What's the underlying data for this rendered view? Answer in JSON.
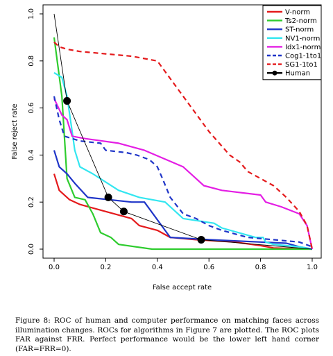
{
  "caption": "Figure 8: ROC of human and computer performance on matching faces across illumination changes. ROCs for algorithms in Figure 7 are plotted. The ROC plots FAR against FRR. Perfect performance would be the lower left hand corner (FAR=FRR=0).",
  "chart_data": {
    "type": "line",
    "xlabel": "False accept rate",
    "ylabel": "False reject rate",
    "xlim": [
      0,
      1
    ],
    "ylim": [
      0,
      1
    ],
    "xticks": [
      "0.0",
      "0.2",
      "0.4",
      "0.6",
      "0.8",
      "1.0"
    ],
    "yticks": [
      "0.0",
      "0.2",
      "0.4",
      "0.6",
      "0.8",
      "1.0"
    ],
    "grid": false,
    "legend_position": "top-right",
    "series": [
      {
        "name": "V-norm",
        "color": "#e41a1c",
        "dash": "solid",
        "points": [
          [
            0.0,
            0.32
          ],
          [
            0.02,
            0.25
          ],
          [
            0.06,
            0.21
          ],
          [
            0.1,
            0.19
          ],
          [
            0.2,
            0.16
          ],
          [
            0.3,
            0.13
          ],
          [
            0.33,
            0.1
          ],
          [
            0.4,
            0.08
          ],
          [
            0.45,
            0.05
          ],
          [
            0.55,
            0.04
          ],
          [
            0.7,
            0.03
          ],
          [
            0.8,
            0.015
          ],
          [
            0.85,
            0.005
          ],
          [
            1.0,
            0.0
          ]
        ]
      },
      {
        "name": "Ts2-norm",
        "color": "#2ecc2e",
        "dash": "solid",
        "points": [
          [
            0.0,
            0.9
          ],
          [
            0.03,
            0.65
          ],
          [
            0.05,
            0.3
          ],
          [
            0.08,
            0.22
          ],
          [
            0.12,
            0.21
          ],
          [
            0.15,
            0.15
          ],
          [
            0.18,
            0.07
          ],
          [
            0.22,
            0.05
          ],
          [
            0.25,
            0.02
          ],
          [
            0.38,
            0.0
          ],
          [
            1.0,
            0.0
          ]
        ]
      },
      {
        "name": "ST-norm",
        "color": "#1f35c8",
        "dash": "solid",
        "points": [
          [
            0.0,
            0.42
          ],
          [
            0.02,
            0.35
          ],
          [
            0.05,
            0.32
          ],
          [
            0.08,
            0.28
          ],
          [
            0.13,
            0.22
          ],
          [
            0.3,
            0.2
          ],
          [
            0.35,
            0.2
          ],
          [
            0.45,
            0.05
          ],
          [
            0.6,
            0.04
          ],
          [
            0.8,
            0.03
          ],
          [
            0.9,
            0.025
          ],
          [
            0.95,
            0.01
          ],
          [
            1.0,
            0.0
          ]
        ]
      },
      {
        "name": "NV1-norm",
        "color": "#33e6f0",
        "dash": "solid",
        "points": [
          [
            0.0,
            0.75
          ],
          [
            0.03,
            0.73
          ],
          [
            0.05,
            0.65
          ],
          [
            0.07,
            0.5
          ],
          [
            0.08,
            0.42
          ],
          [
            0.1,
            0.35
          ],
          [
            0.15,
            0.32
          ],
          [
            0.25,
            0.25
          ],
          [
            0.33,
            0.22
          ],
          [
            0.43,
            0.2
          ],
          [
            0.5,
            0.13
          ],
          [
            0.62,
            0.11
          ],
          [
            0.65,
            0.09
          ],
          [
            0.78,
            0.05
          ],
          [
            0.81,
            0.05
          ],
          [
            0.82,
            0.03
          ],
          [
            0.85,
            0.02
          ],
          [
            0.95,
            0.01
          ],
          [
            1.0,
            0.0
          ]
        ]
      },
      {
        "name": "Idx1-norm",
        "color": "#e41ee4",
        "dash": "solid",
        "points": [
          [
            0.0,
            0.64
          ],
          [
            0.03,
            0.57
          ],
          [
            0.05,
            0.55
          ],
          [
            0.07,
            0.48
          ],
          [
            0.12,
            0.47
          ],
          [
            0.25,
            0.45
          ],
          [
            0.35,
            0.42
          ],
          [
            0.5,
            0.35
          ],
          [
            0.55,
            0.3
          ],
          [
            0.58,
            0.27
          ],
          [
            0.65,
            0.25
          ],
          [
            0.8,
            0.23
          ],
          [
            0.82,
            0.2
          ],
          [
            0.88,
            0.18
          ],
          [
            0.95,
            0.15
          ],
          [
            0.98,
            0.1
          ],
          [
            1.0,
            0.0
          ]
        ]
      },
      {
        "name": "Cog1-1to1",
        "color": "#1f35c8",
        "dash": "dashed",
        "points": [
          [
            0.0,
            0.65
          ],
          [
            0.02,
            0.55
          ],
          [
            0.04,
            0.48
          ],
          [
            0.07,
            0.47
          ],
          [
            0.1,
            0.46
          ],
          [
            0.18,
            0.45
          ],
          [
            0.2,
            0.42
          ],
          [
            0.28,
            0.41
          ],
          [
            0.32,
            0.4
          ],
          [
            0.37,
            0.38
          ],
          [
            0.4,
            0.35
          ],
          [
            0.42,
            0.3
          ],
          [
            0.45,
            0.22
          ],
          [
            0.5,
            0.15
          ],
          [
            0.55,
            0.13
          ],
          [
            0.6,
            0.1
          ],
          [
            0.65,
            0.08
          ],
          [
            0.75,
            0.05
          ],
          [
            0.85,
            0.04
          ],
          [
            0.95,
            0.03
          ],
          [
            1.0,
            0.01
          ]
        ]
      },
      {
        "name": "SG1-1to1",
        "color": "#e41a1c",
        "dash": "dashed",
        "points": [
          [
            0.0,
            0.88
          ],
          [
            0.02,
            0.86
          ],
          [
            0.05,
            0.85
          ],
          [
            0.1,
            0.84
          ],
          [
            0.2,
            0.83
          ],
          [
            0.3,
            0.82
          ],
          [
            0.4,
            0.8
          ],
          [
            0.5,
            0.65
          ],
          [
            0.6,
            0.5
          ],
          [
            0.68,
            0.4
          ],
          [
            0.72,
            0.37
          ],
          [
            0.75,
            0.33
          ],
          [
            0.8,
            0.3
          ],
          [
            0.85,
            0.27
          ],
          [
            0.9,
            0.22
          ],
          [
            0.95,
            0.16
          ],
          [
            0.98,
            0.1
          ],
          [
            1.0,
            0.0
          ]
        ]
      }
    ],
    "human": {
      "name": "Human",
      "color": "#000000",
      "line": [
        [
          0.0,
          1.0
        ],
        [
          0.05,
          0.63
        ],
        [
          0.21,
          0.22
        ],
        [
          0.27,
          0.16
        ],
        [
          0.57,
          0.04
        ],
        [
          1.0,
          0.0
        ]
      ],
      "points": [
        [
          0.05,
          0.63
        ],
        [
          0.21,
          0.22
        ],
        [
          0.27,
          0.16
        ],
        [
          0.57,
          0.04
        ]
      ]
    }
  }
}
